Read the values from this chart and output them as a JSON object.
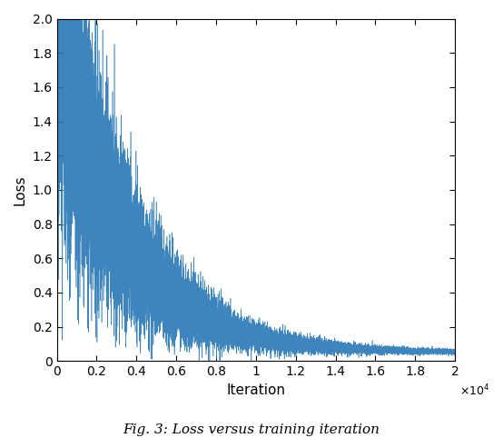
{
  "title": "Fig. 3: Loss versus training iteration",
  "xlabel": "Iteration",
  "ylabel": "Loss",
  "xlim": [
    0,
    20000
  ],
  "ylim": [
    0,
    2.0
  ],
  "xtick_labels": [
    "0",
    "0.2",
    "0.4",
    "0.6",
    "0.8",
    "1",
    "1.2",
    "1.4",
    "1.6",
    "1.8",
    "2"
  ],
  "xtick_vals": [
    0,
    2000,
    4000,
    6000,
    8000,
    10000,
    12000,
    14000,
    16000,
    18000,
    20000
  ],
  "ytick_vals": [
    0,
    0.2,
    0.4,
    0.6,
    0.8,
    1.0,
    1.2,
    1.4,
    1.6,
    1.8,
    2.0
  ],
  "line_color": "#2878b5",
  "n_points": 20000,
  "seed": 42,
  "background_color": "#ffffff"
}
